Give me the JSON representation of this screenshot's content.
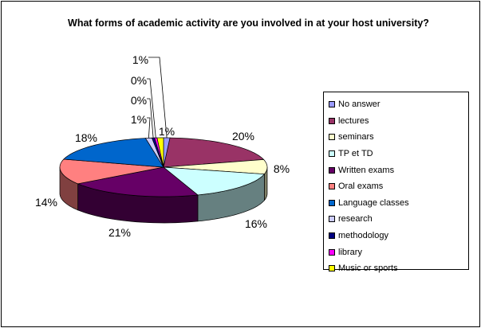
{
  "chart_data": {
    "type": "pie",
    "title": "What forms of academic activity are you involved in at your host university?",
    "legend_position": "right",
    "style": "3d-exploded-none",
    "slices": [
      {
        "name": "No answer",
        "value": 1,
        "label": "1%",
        "color": "#9999FF"
      },
      {
        "name": "lectures",
        "value": 20,
        "label": "20%",
        "color": "#993366"
      },
      {
        "name": "seminars",
        "value": 8,
        "label": "8%",
        "color": "#FFFFCC"
      },
      {
        "name": "TP et  TD",
        "value": 16,
        "label": "16%",
        "color": "#CCFFFF"
      },
      {
        "name": "Written exams",
        "value": 21,
        "label": "21%",
        "color": "#660066"
      },
      {
        "name": "Oral exams",
        "value": 14,
        "label": "14%",
        "color": "#FF8080"
      },
      {
        "name": "Language classes",
        "value": 18,
        "label": "18%",
        "color": "#0066CC"
      },
      {
        "name": "research",
        "value": 1,
        "label": "1%",
        "color": "#CCCCFF"
      },
      {
        "name": "methodology",
        "value": 0.4,
        "label": "0%",
        "color": "#000080"
      },
      {
        "name": "library",
        "value": 0.4,
        "label": "0%",
        "color": "#FF00FF"
      },
      {
        "name": "Music or sports",
        "value": 1,
        "label": "1%",
        "color": "#FFFF00"
      }
    ]
  }
}
